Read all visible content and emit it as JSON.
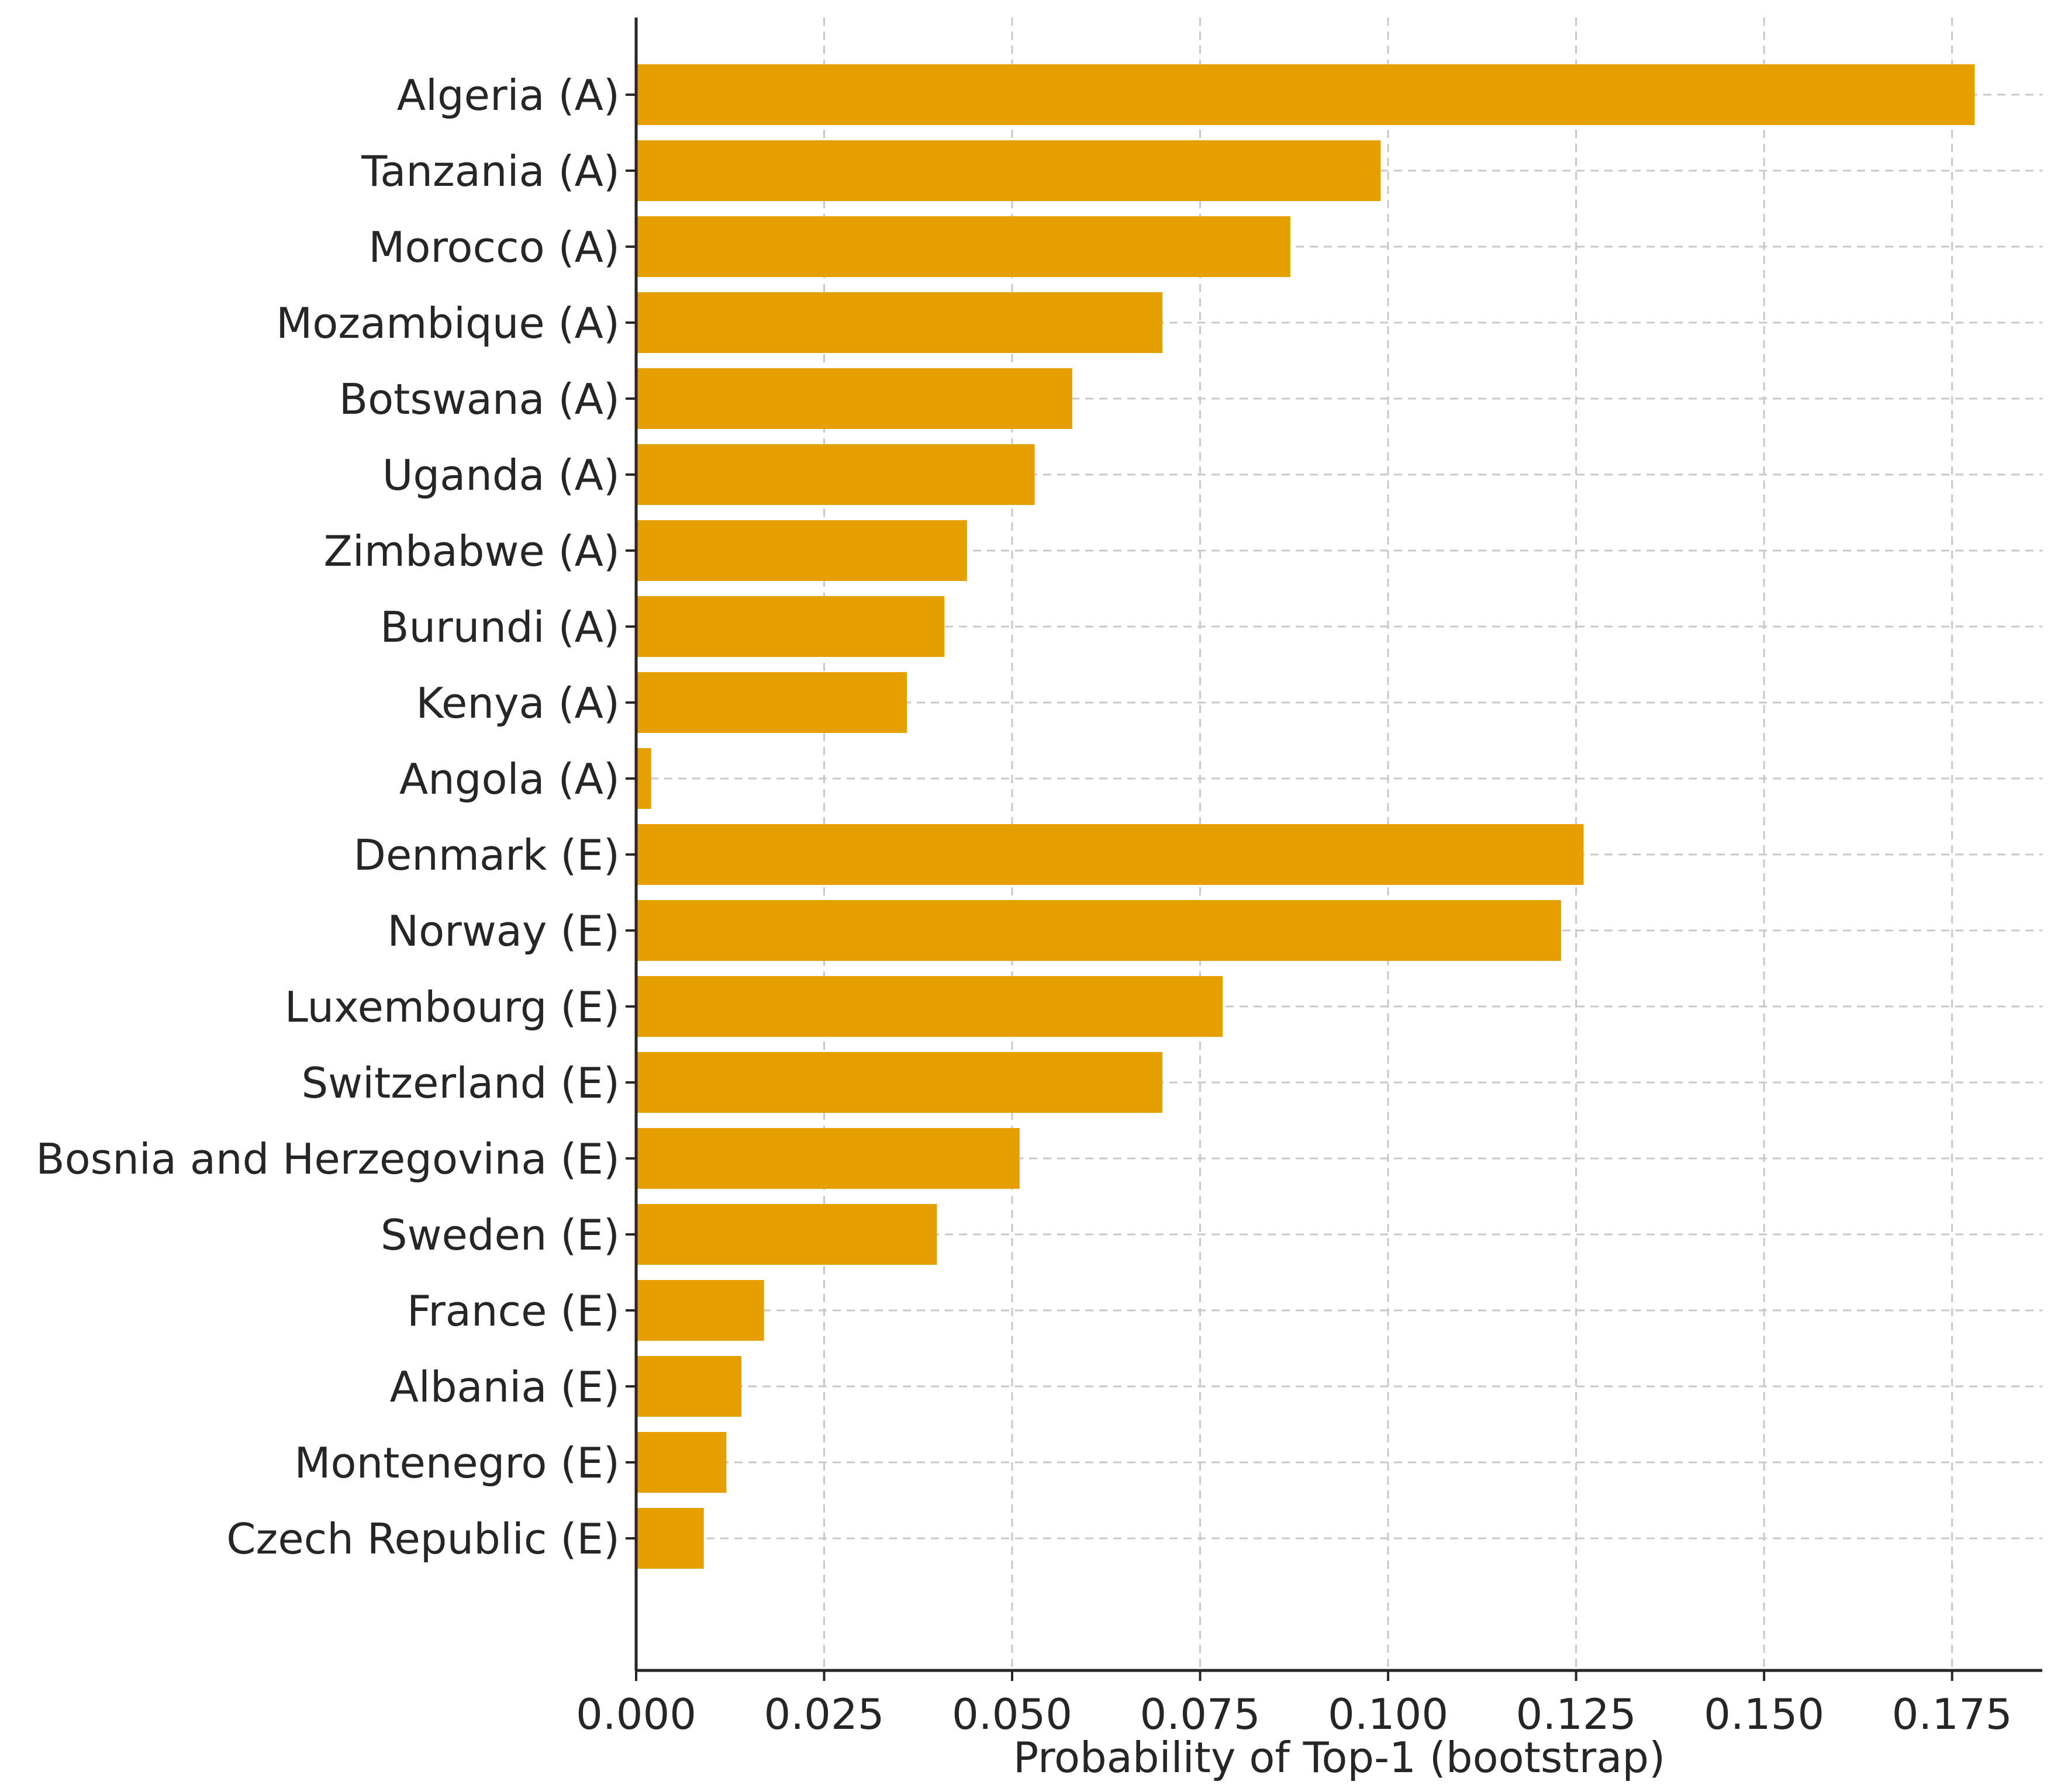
{
  "chart_data": {
    "type": "bar",
    "orientation": "horizontal",
    "categories": [
      "Algeria (A)",
      "Tanzania (A)",
      "Morocco (A)",
      "Mozambique (A)",
      "Botswana (A)",
      "Uganda (A)",
      "Zimbabwe (A)",
      "Burundi (A)",
      "Kenya (A)",
      "Angola (A)",
      "Denmark (E)",
      "Norway (E)",
      "Luxembourg (E)",
      "Switzerland (E)",
      "Bosnia and Herzegovina (E)",
      "Sweden (E)",
      "France (E)",
      "Albania (E)",
      "Montenegro (E)",
      "Czech Republic (E)"
    ],
    "values": [
      0.178,
      0.099,
      0.087,
      0.07,
      0.058,
      0.053,
      0.044,
      0.041,
      0.036,
      0.002,
      0.126,
      0.123,
      0.078,
      0.07,
      0.051,
      0.04,
      0.017,
      0.014,
      0.012,
      0.009
    ],
    "xlabel": "Probability of Top-1 (bootstrap)",
    "ylabel": "",
    "title": "",
    "xlim": [
      0,
      0.187
    ],
    "xticks": [
      0.0,
      0.025,
      0.05,
      0.075,
      0.1,
      0.125,
      0.15,
      0.175
    ],
    "xtick_labels": [
      "0.000",
      "0.025",
      "0.050",
      "0.075",
      "0.100",
      "0.125",
      "0.150",
      "0.175"
    ],
    "grid": true,
    "grid_style": "dashed",
    "bar_color": "#E69F00"
  }
}
